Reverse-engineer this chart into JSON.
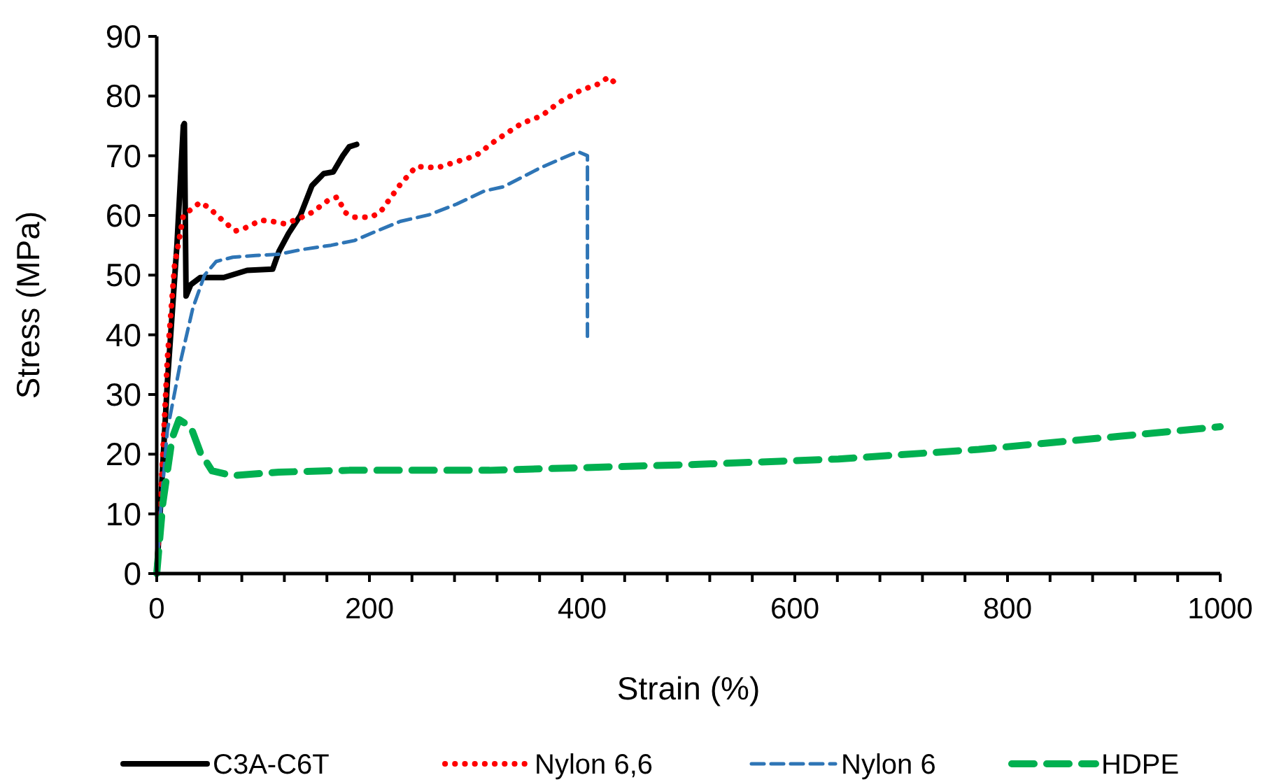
{
  "chart_data": {
    "type": "line",
    "xlabel": "Strain (%)",
    "ylabel": "Stress (MPa)",
    "xlim": [
      0,
      1000
    ],
    "ylim": [
      0,
      90
    ],
    "xticks": [
      0,
      {
        "value": 40,
        "label": null
      },
      {
        "value": 80,
        "label": null
      },
      {
        "value": 120,
        "label": null
      },
      {
        "value": 160,
        "label": null
      },
      200,
      {
        "value": 240,
        "label": null
      },
      {
        "value": 280,
        "label": null
      },
      {
        "value": 320,
        "label": null
      },
      {
        "value": 360,
        "label": null
      },
      400,
      {
        "value": 440,
        "label": null
      },
      {
        "value": 480,
        "label": null
      },
      {
        "value": 520,
        "label": null
      },
      {
        "value": 560,
        "label": null
      },
      600,
      {
        "value": 640,
        "label": null
      },
      {
        "value": 680,
        "label": null
      },
      {
        "value": 720,
        "label": null
      },
      {
        "value": 760,
        "label": null
      },
      800,
      {
        "value": 840,
        "label": null
      },
      {
        "value": 880,
        "label": null
      },
      {
        "value": 920,
        "label": null
      },
      {
        "value": 960,
        "label": null
      },
      1000
    ],
    "yticks": [
      0,
      10,
      20,
      30,
      40,
      50,
      60,
      70,
      80,
      90
    ],
    "grid": false,
    "legend": "bottom",
    "marker": "none",
    "series": [
      {
        "name": "C3A-C6T",
        "color": "#000000",
        "line_style": "solid",
        "x": [
          0,
          10,
          19,
          25,
          26,
          27.6,
          32,
          41,
          63,
          85,
          109,
          115,
          124,
          135,
          146,
          157,
          166,
          175,
          181,
          188
        ],
        "values": [
          0,
          32,
          55,
          75,
          75.4,
          46.5,
          48.4,
          49.6,
          49.6,
          50.8,
          51,
          54,
          57,
          60,
          65,
          67,
          67.3,
          70,
          71.5,
          71.9
        ]
      },
      {
        "name": "Nylon 6,6",
        "color": "#ff0000",
        "line_style": "dotted",
        "x": [
          0,
          5.7,
          10,
          16.7,
          25,
          41,
          49,
          63,
          74,
          82,
          98,
          109,
          120,
          133,
          146,
          161,
          170,
          177,
          186,
          201,
          210,
          229,
          244,
          264,
          282,
          300,
          319,
          343,
          362,
          378,
          398,
          415,
          425,
          432
        ],
        "values": [
          0,
          20,
          36,
          51.5,
          60,
          62.2,
          61.3,
          59,
          57.4,
          57.8,
          59.2,
          59,
          58.6,
          59.4,
          60.5,
          62.5,
          63.1,
          60.5,
          59.7,
          59.7,
          60.5,
          65.2,
          68.2,
          68,
          69,
          70,
          72.6,
          75.4,
          76.7,
          78.9,
          80.9,
          82,
          83.2,
          82
        ]
      },
      {
        "name": "Nylon 6",
        "color": "#2e75b6",
        "line_style": "dashed",
        "x": [
          0,
          3.5,
          10,
          23,
          34,
          45,
          56,
          71.5,
          93,
          115,
          137,
          164,
          186,
          207,
          229,
          256,
          282,
          308,
          326,
          361,
          396,
          405,
          405
        ],
        "values": [
          0,
          10,
          24,
          36,
          44.5,
          50,
          52.3,
          53,
          53.3,
          53.5,
          54.3,
          55,
          55.8,
          57.4,
          59,
          60.1,
          61.9,
          64.1,
          64.8,
          68,
          70.7,
          70,
          38.7
        ]
      },
      {
        "name": "HDPE",
        "color": "#00b050",
        "line_style": "dashed",
        "x": [
          0,
          5.7,
          14.5,
          21,
          32,
          41,
          52,
          71.5,
          115,
          181,
          313,
          510,
          641,
          773,
          905,
          1000
        ],
        "values": [
          0,
          11.7,
          22.7,
          25.8,
          24.6,
          20.3,
          17.2,
          16.4,
          17,
          17.3,
          17.3,
          18.3,
          19.2,
          20.8,
          23,
          24.6
        ]
      }
    ]
  }
}
